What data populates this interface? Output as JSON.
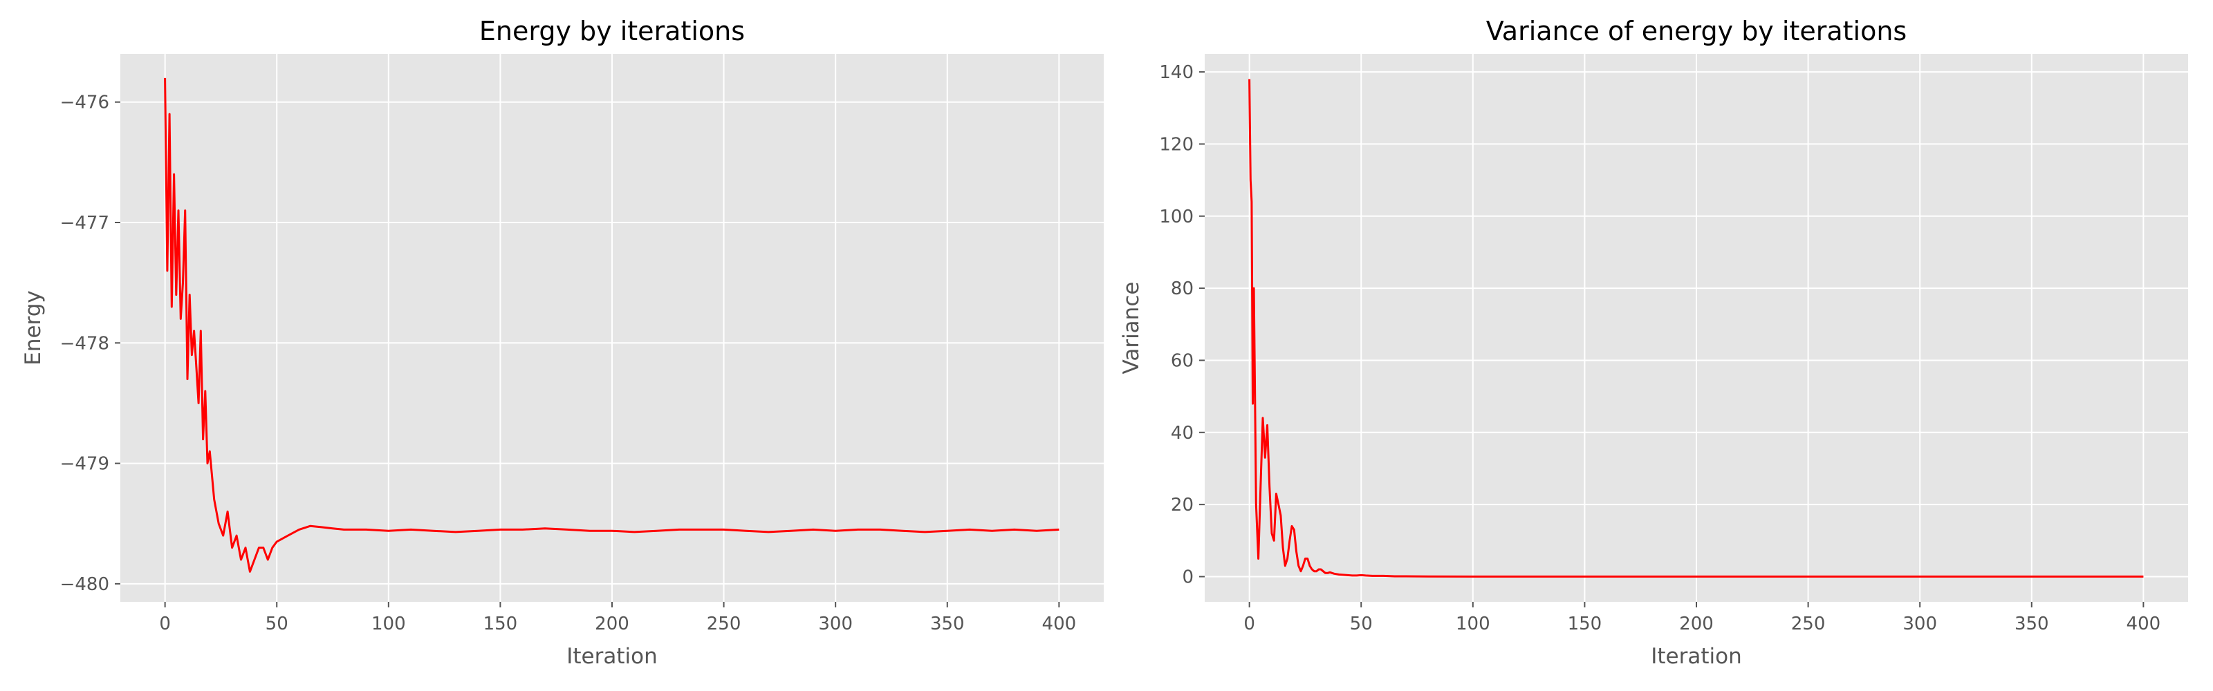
{
  "chart_data": [
    {
      "type": "line",
      "title": "Energy by iterations",
      "xlabel": "Iteration",
      "ylabel": "Energy",
      "xlim": [
        -20,
        420
      ],
      "ylim": [
        -480.15,
        -475.6
      ],
      "xticks": [
        0,
        50,
        100,
        150,
        200,
        250,
        300,
        350,
        400
      ],
      "xtick_labels": [
        "0",
        "50",
        "100",
        "150",
        "200",
        "250",
        "300",
        "350",
        "400"
      ],
      "yticks": [
        -476,
        -477,
        -478,
        -479,
        -480
      ],
      "ytick_labels": [
        "−476",
        "−477",
        "−478",
        "−479",
        "−480"
      ],
      "grid": true,
      "series": [
        {
          "color": "#ff0000",
          "x": [
            0,
            1,
            2,
            3,
            4,
            5,
            6,
            7,
            8,
            9,
            10,
            11,
            12,
            13,
            14,
            15,
            16,
            17,
            18,
            19,
            20,
            22,
            24,
            26,
            28,
            30,
            32,
            34,
            36,
            38,
            40,
            42,
            44,
            46,
            48,
            50,
            55,
            60,
            65,
            70,
            75,
            80,
            90,
            100,
            110,
            120,
            130,
            140,
            150,
            160,
            170,
            180,
            190,
            200,
            210,
            220,
            230,
            240,
            250,
            260,
            270,
            280,
            290,
            300,
            310,
            320,
            330,
            340,
            350,
            360,
            370,
            380,
            390,
            400
          ],
          "y": [
            -475.8,
            -477.4,
            -476.1,
            -477.7,
            -476.6,
            -477.6,
            -476.9,
            -477.8,
            -477.5,
            -476.9,
            -478.3,
            -477.6,
            -478.1,
            -477.9,
            -478.2,
            -478.5,
            -477.9,
            -478.8,
            -478.4,
            -479.0,
            -478.9,
            -479.3,
            -479.5,
            -479.6,
            -479.4,
            -479.7,
            -479.6,
            -479.8,
            -479.7,
            -479.9,
            -479.8,
            -479.7,
            -479.7,
            -479.8,
            -479.7,
            -479.65,
            -479.6,
            -479.55,
            -479.52,
            -479.53,
            -479.54,
            -479.55,
            -479.55,
            -479.56,
            -479.55,
            -479.56,
            -479.57,
            -479.56,
            -479.55,
            -479.55,
            -479.54,
            -479.55,
            -479.56,
            -479.56,
            -479.57,
            -479.56,
            -479.55,
            -479.55,
            -479.55,
            -479.56,
            -479.57,
            -479.56,
            -479.55,
            -479.56,
            -479.55,
            -479.55,
            -479.56,
            -479.57,
            -479.56,
            -479.55,
            -479.56,
            -479.55,
            -479.56,
            -479.55
          ]
        }
      ]
    },
    {
      "type": "line",
      "title": "Variance of energy by iterations",
      "xlabel": "Iteration",
      "ylabel": "Variance",
      "xlim": [
        -20,
        420
      ],
      "ylim": [
        -7,
        145
      ],
      "xticks": [
        0,
        50,
        100,
        150,
        200,
        250,
        300,
        350,
        400
      ],
      "xtick_labels": [
        "0",
        "50",
        "100",
        "150",
        "200",
        "250",
        "300",
        "350",
        "400"
      ],
      "yticks": [
        0,
        20,
        40,
        60,
        80,
        100,
        120,
        140
      ],
      "ytick_labels": [
        "0",
        "20",
        "40",
        "60",
        "80",
        "100",
        "120",
        "140"
      ],
      "grid": true,
      "series": [
        {
          "color": "#ff0000",
          "x": [
            0,
            0.5,
            1,
            1.5,
            2,
            3,
            4,
            5,
            6,
            7,
            8,
            9,
            10,
            11,
            12,
            13,
            14,
            15,
            16,
            17,
            18,
            19,
            20,
            21,
            22,
            23,
            24,
            25,
            26,
            27,
            28,
            29,
            30,
            31,
            32,
            33,
            34,
            35,
            36,
            37,
            38,
            40,
            42,
            44,
            46,
            48,
            50,
            52,
            55,
            60,
            65,
            70,
            80,
            100,
            150,
            200,
            250,
            300,
            350,
            400
          ],
          "y": [
            138,
            110,
            104,
            48,
            80,
            20,
            5,
            25,
            44,
            33,
            42,
            25,
            12,
            10,
            23,
            20,
            17,
            8,
            3,
            5,
            10,
            14,
            13,
            7,
            3,
            1.5,
            3,
            5,
            5,
            3,
            2,
            1.5,
            1.5,
            2,
            2,
            1.5,
            1,
            1,
            1.2,
            1,
            0.8,
            0.6,
            0.5,
            0.4,
            0.3,
            0.3,
            0.4,
            0.3,
            0.2,
            0.2,
            0.1,
            0.1,
            0.05,
            0.02,
            0.02,
            0.02,
            0.02,
            0.02,
            0.02,
            0.02
          ]
        }
      ]
    }
  ]
}
